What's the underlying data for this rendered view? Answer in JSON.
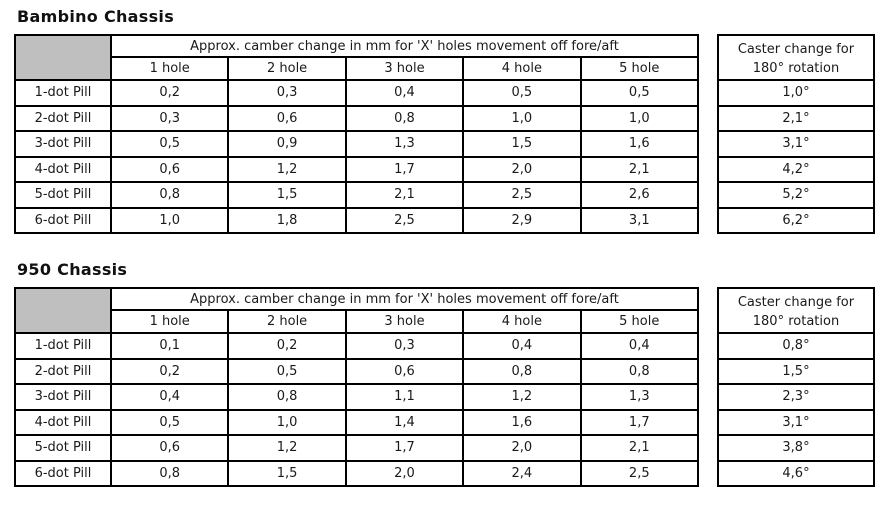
{
  "styles": {
    "background": "#ffffff",
    "text_color": "#1a1a1a",
    "border_color": "#000000",
    "gray_fill": "#bfbfbf"
  },
  "tables": [
    {
      "title": "Bambino Chassis",
      "camber_header": "Approx. camber change in mm for 'X' holes movement off fore/aft",
      "hole_headers": [
        "1 hole",
        "2 hole",
        "3 hole",
        "4 hole",
        "5 hole"
      ],
      "caster_header": {
        "line1": "Caster change for",
        "line2": "180° rotation"
      },
      "rows": [
        {
          "label": "1-dot Pill",
          "values": [
            "0,2",
            "0,3",
            "0,4",
            "0,5",
            "0,5"
          ],
          "caster": "1,0°"
        },
        {
          "label": "2-dot Pill",
          "values": [
            "0,3",
            "0,6",
            "0,8",
            "1,0",
            "1,0"
          ],
          "caster": "2,1°"
        },
        {
          "label": "3-dot Pill",
          "values": [
            "0,5",
            "0,9",
            "1,3",
            "1,5",
            "1,6"
          ],
          "caster": "3,1°"
        },
        {
          "label": "4-dot Pill",
          "values": [
            "0,6",
            "1,2",
            "1,7",
            "2,0",
            "2,1"
          ],
          "caster": "4,2°"
        },
        {
          "label": "5-dot Pill",
          "values": [
            "0,8",
            "1,5",
            "2,1",
            "2,5",
            "2,6"
          ],
          "caster": "5,2°"
        },
        {
          "label": "6-dot Pill",
          "values": [
            "1,0",
            "1,8",
            "2,5",
            "2,9",
            "3,1"
          ],
          "caster": "6,2°"
        }
      ]
    },
    {
      "title": "950 Chassis",
      "camber_header": "Approx. camber change in mm for 'X' holes movement off fore/aft",
      "hole_headers": [
        "1 hole",
        "2 hole",
        "3 hole",
        "4 hole",
        "5 hole"
      ],
      "caster_header": {
        "line1": "Caster change for",
        "line2": "180° rotation"
      },
      "rows": [
        {
          "label": "1-dot Pill",
          "values": [
            "0,1",
            "0,2",
            "0,3",
            "0,4",
            "0,4"
          ],
          "caster": "0,8°"
        },
        {
          "label": "2-dot Pill",
          "values": [
            "0,2",
            "0,5",
            "0,6",
            "0,8",
            "0,8"
          ],
          "caster": "1,5°"
        },
        {
          "label": "3-dot Pill",
          "values": [
            "0,4",
            "0,8",
            "1,1",
            "1,2",
            "1,3"
          ],
          "caster": "2,3°"
        },
        {
          "label": "4-dot Pill",
          "values": [
            "0,5",
            "1,0",
            "1,4",
            "1,6",
            "1,7"
          ],
          "caster": "3,1°"
        },
        {
          "label": "5-dot Pill",
          "values": [
            "0,6",
            "1,2",
            "1,7",
            "2,0",
            "2,1"
          ],
          "caster": "3,8°"
        },
        {
          "label": "6-dot Pill",
          "values": [
            "0,8",
            "1,5",
            "2,0",
            "2,4",
            "2,5"
          ],
          "caster": "4,6°"
        }
      ]
    }
  ]
}
